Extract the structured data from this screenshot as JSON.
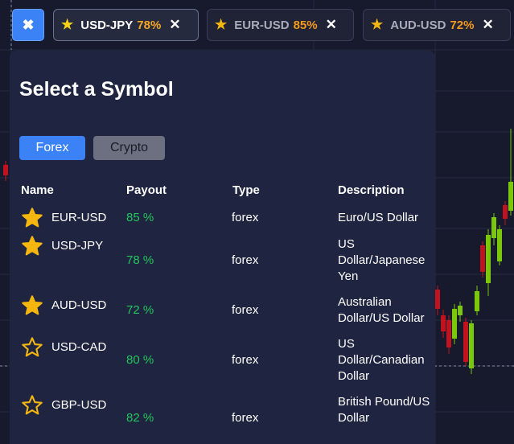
{
  "tabs": [
    {
      "symbol": "USD-JPY",
      "payout": "78%",
      "active": true
    },
    {
      "symbol": "EUR-USD",
      "payout": "85%",
      "active": false
    },
    {
      "symbol": "AUD-USD",
      "payout": "72%",
      "active": false
    }
  ],
  "close_all_glyph": "✖",
  "tab_close_glyph": "✕",
  "panel": {
    "title": "Select a Symbol",
    "segments": [
      "Forex",
      "Crypto"
    ],
    "selected_segment": "Forex",
    "columns": [
      "Name",
      "Payout",
      "Type",
      "Description"
    ],
    "rows": [
      {
        "name": "EUR-USD",
        "payout": "85 %",
        "type": "forex",
        "description": "Euro/US Dollar",
        "favorite": true
      },
      {
        "name": "USD-JPY",
        "payout": "78 %",
        "type": "forex",
        "description": "US Dollar/Japanese Yen",
        "favorite": true
      },
      {
        "name": "AUD-USD",
        "payout": "72 %",
        "type": "forex",
        "description": "Australian Dollar/US Dollar",
        "favorite": true
      },
      {
        "name": "USD-CAD",
        "payout": "80 %",
        "type": "forex",
        "description": "US Dollar/Canadian Dollar",
        "favorite": false
      },
      {
        "name": "GBP-USD",
        "payout": "82 %",
        "type": "forex",
        "description": "British Pound/US Dollar",
        "favorite": false
      }
    ]
  },
  "colors": {
    "accent": "#3b82f6",
    "star": "#f5b70f",
    "payout": "#22c55e",
    "panel_bg": "#1f2540",
    "candle_up": "#7ac70c",
    "candle_down": "#c1121f"
  }
}
